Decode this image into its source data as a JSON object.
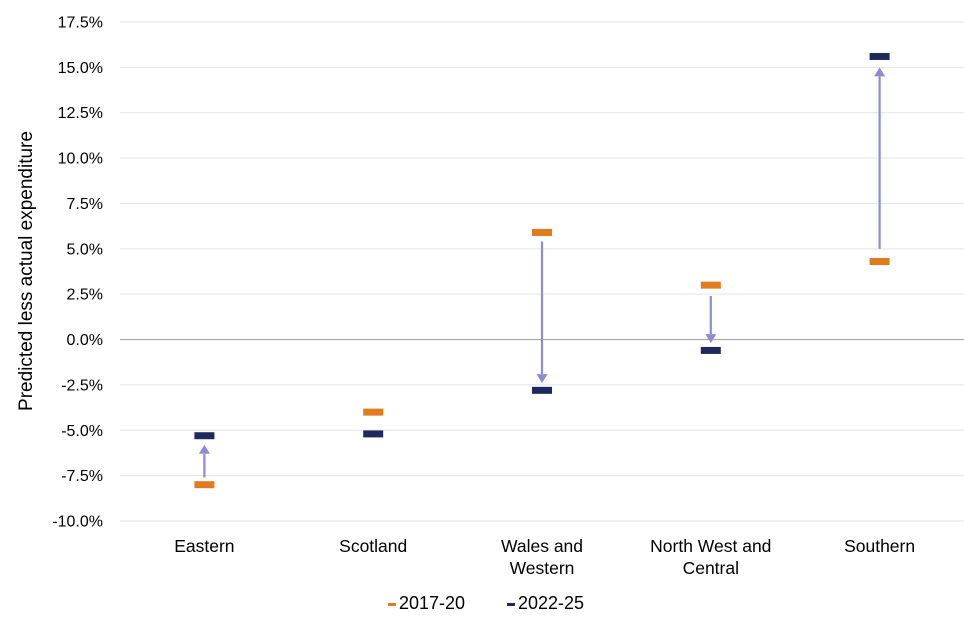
{
  "chart_data": {
    "type": "scatter",
    "title": "",
    "xlabel": "",
    "ylabel": "Predicted less actual expenditure",
    "categories": [
      [
        "Eastern"
      ],
      [
        "Scotland"
      ],
      [
        "Wales and",
        "Western"
      ],
      [
        "North West and",
        "Central"
      ],
      [
        "Southern"
      ]
    ],
    "y_ticks": [
      "17.5%",
      "15.0%",
      "12.5%",
      "10.0%",
      "7.5%",
      "5.0%",
      "2.5%",
      "0.0%",
      "-2.5%",
      "-5.0%",
      "-7.5%",
      "-10.0%"
    ],
    "ylim": [
      -10.0,
      17.5
    ],
    "y_unit": "%",
    "grid": true,
    "legend_position": "bottom",
    "series": [
      {
        "name": "2017-20",
        "color": "#E07B1F",
        "values": [
          -8.0,
          -4.0,
          5.9,
          3.0,
          4.3
        ]
      },
      {
        "name": "2022-25",
        "color": "#1F2A5C",
        "values": [
          -5.3,
          -5.2,
          -2.8,
          -0.6,
          15.6
        ]
      }
    ],
    "arrow_color": "#8C8CD2",
    "arrows": [
      {
        "category": 0,
        "from": -7.6,
        "to": -5.8
      },
      {
        "category": 2,
        "from": 5.4,
        "to": -2.4
      },
      {
        "category": 3,
        "from": 2.4,
        "to": -0.2
      },
      {
        "category": 4,
        "from": 5.0,
        "to": 15.0
      }
    ]
  }
}
